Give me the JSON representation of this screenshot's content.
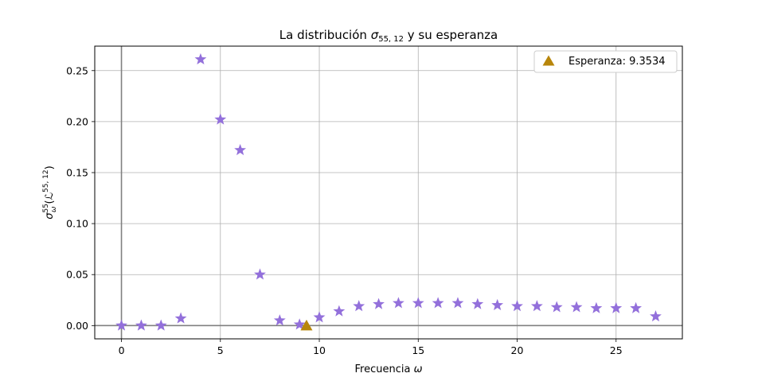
{
  "chart_data": {
    "type": "scatter",
    "title": "La distribución σ₅₅,₁₂ y su esperanza",
    "title_parts": {
      "prefix": "La distribución ",
      "sigma": "σ",
      "sub": "55, 12",
      "suffix": " y su esperanza"
    },
    "xlabel": "Frecuencia ω",
    "xlabel_parts": {
      "text": "Frecuencia ",
      "omega": "ω"
    },
    "ylabel": "σ_ω^55(ℒ^(55,12))",
    "ylabel_parts": {
      "sigma": "σ",
      "sub": "ω",
      "sup": "55",
      "open": "(",
      "L": "ℒ",
      "Lsup": "55, 12",
      "close": ")"
    },
    "xlim": [
      -1.35,
      28.35
    ],
    "ylim": [
      -0.013,
      0.274
    ],
    "x_ticks": [
      0,
      5,
      10,
      15,
      20,
      25
    ],
    "x_tick_labels": [
      "0",
      "5",
      "10",
      "15",
      "20",
      "25"
    ],
    "y_ticks": [
      0.0,
      0.05,
      0.1,
      0.15,
      0.2,
      0.25
    ],
    "y_tick_labels": [
      "0.00",
      "0.05",
      "0.10",
      "0.15",
      "0.20",
      "0.25"
    ],
    "grid": true,
    "legend_position": "top-right",
    "series": [
      {
        "marker": "star",
        "color": "#9370db",
        "x": [
          0,
          1,
          2,
          3,
          4,
          5,
          6,
          7,
          8,
          9,
          10,
          11,
          12,
          13,
          14,
          15,
          16,
          17,
          18,
          19,
          20,
          21,
          22,
          23,
          24,
          25,
          26,
          27
        ],
        "y": [
          0.0,
          0.0,
          0.0,
          0.007,
          0.261,
          0.202,
          0.172,
          0.05,
          0.005,
          0.001,
          0.008,
          0.014,
          0.019,
          0.021,
          0.022,
          0.022,
          0.022,
          0.022,
          0.021,
          0.02,
          0.019,
          0.019,
          0.018,
          0.018,
          0.017,
          0.017,
          0.017,
          0.009
        ]
      },
      {
        "name": "Esperanza: 9.3534",
        "marker": "triangle",
        "color": "#b8860b",
        "x": [
          9.3534
        ],
        "y": [
          0.0
        ]
      }
    ],
    "reference_lines": {
      "x": 0,
      "y": 0,
      "color": "#808080"
    }
  }
}
